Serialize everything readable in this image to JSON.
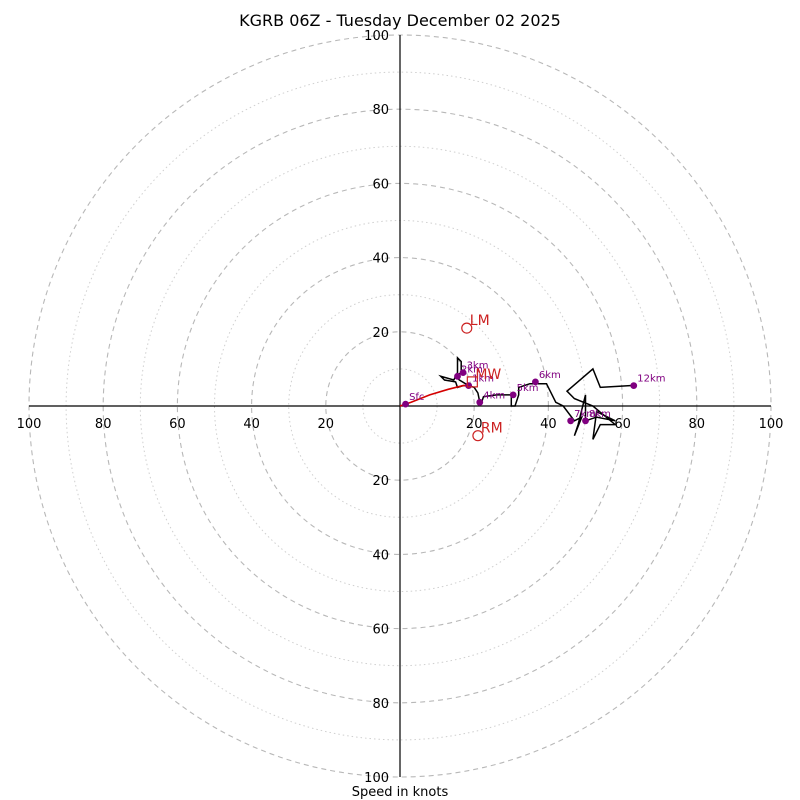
{
  "chart_data": {
    "type": "hodograph",
    "title": "KGRB 06Z - Tuesday December 02 2025",
    "xlabel": "Speed in knots",
    "max_speed": 100,
    "major_rings": [
      20,
      40,
      60,
      80,
      100
    ],
    "minor_rings": [
      10,
      30,
      50,
      70,
      90
    ],
    "ticks": {
      "left": [
        "100",
        "80",
        "60",
        "40",
        "20"
      ],
      "right": [
        "20",
        "40",
        "60",
        "80",
        "100"
      ],
      "top": [
        "100",
        "80",
        "60",
        "40",
        "20"
      ],
      "bottom": [
        "20",
        "40",
        "60",
        "80",
        "100"
      ],
      "values": [
        100,
        80,
        60,
        40,
        20
      ]
    },
    "colors": {
      "trace": "#000000",
      "lowlevel_trace": "#d40000",
      "height_marker": "#800080",
      "storm_motion": "#cc2222"
    },
    "lowlevel_trace": [
      [
        0,
        0
      ],
      [
        3,
        1
      ],
      [
        8,
        3
      ],
      [
        13,
        4.5
      ],
      [
        17,
        5.5
      ],
      [
        18.5,
        5.5
      ]
    ],
    "trace": [
      [
        18.5,
        5.5
      ],
      [
        16,
        7
      ],
      [
        15,
        8
      ],
      [
        16.5,
        9
      ],
      [
        16.5,
        12
      ],
      [
        15.5,
        13
      ],
      [
        15.5,
        9
      ],
      [
        14.5,
        7
      ],
      [
        11,
        8
      ],
      [
        12,
        7
      ],
      [
        15,
        6.5
      ],
      [
        15.5,
        5
      ],
      [
        17,
        5.5
      ],
      [
        18.5,
        5.5
      ],
      [
        20,
        5
      ],
      [
        21,
        3.5
      ],
      [
        21.5,
        1
      ],
      [
        22,
        1
      ],
      [
        22.5,
        2.5
      ],
      [
        26,
        3
      ],
      [
        30,
        3
      ],
      [
        30,
        0
      ],
      [
        31,
        0
      ],
      [
        32,
        3
      ],
      [
        32,
        5
      ],
      [
        35,
        6
      ],
      [
        37,
        6
      ],
      [
        39.5,
        6
      ],
      [
        42,
        1
      ],
      [
        44,
        0
      ],
      [
        47,
        -4
      ],
      [
        49,
        -3
      ],
      [
        47,
        -8
      ],
      [
        48,
        -5
      ],
      [
        50,
        3
      ],
      [
        50,
        -4
      ],
      [
        53,
        -3
      ],
      [
        58,
        -4
      ],
      [
        53,
        -1.5
      ],
      [
        52,
        -9
      ],
      [
        54,
        -5
      ],
      [
        58,
        -5
      ],
      [
        52,
        0
      ],
      [
        47,
        2
      ],
      [
        45,
        4
      ],
      [
        52,
        10
      ],
      [
        54,
        5
      ],
      [
        62,
        5.5
      ],
      [
        63,
        5.5
      ]
    ],
    "height_markers": [
      {
        "label": "Sfc",
        "u": 1.5,
        "v": 0.5
      },
      {
        "label": "1km",
        "u": 18.5,
        "v": 5.5
      },
      {
        "label": "2km",
        "u": 15.5,
        "v": 8
      },
      {
        "label": "3km",
        "u": 17,
        "v": 9
      },
      {
        "label": "4km",
        "u": 21.5,
        "v": 1
      },
      {
        "label": "5km",
        "u": 30.5,
        "v": 3
      },
      {
        "label": "6km",
        "u": 36.5,
        "v": 6.5
      },
      {
        "label": "7km",
        "u": 46,
        "v": -4
      },
      {
        "label": "8km",
        "u": 50,
        "v": -4
      },
      {
        "label": "12km",
        "u": 63,
        "v": 5.5
      }
    ],
    "storm_motions": [
      {
        "label": "LM",
        "u": 18,
        "v": 21,
        "marker": "circle"
      },
      {
        "label": "MW",
        "u": 19.5,
        "v": 6.5,
        "marker": "square"
      },
      {
        "label": "RM",
        "u": 21,
        "v": -8,
        "marker": "circle"
      }
    ]
  }
}
